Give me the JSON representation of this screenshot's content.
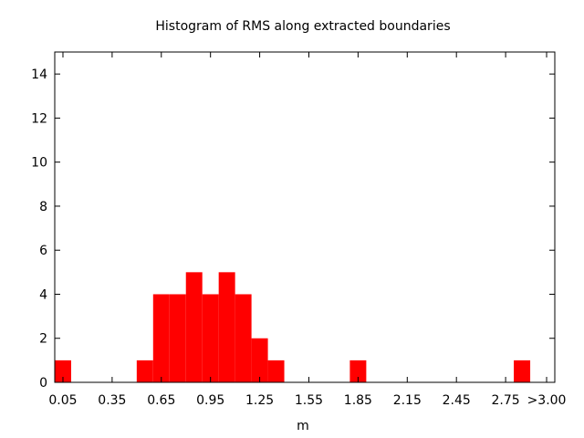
{
  "chart_data": {
    "type": "bar",
    "title": "Histogram of RMS along extracted boundaries",
    "xlabel": "m",
    "ylabel": "",
    "ylim": [
      0,
      15
    ],
    "xlim": [
      0.0,
      3.05
    ],
    "bin_width": 0.1,
    "bar_color": "#ff0000",
    "bins": [
      {
        "x": 0.05,
        "value": 1
      },
      {
        "x": 0.55,
        "value": 1
      },
      {
        "x": 0.65,
        "value": 4
      },
      {
        "x": 0.75,
        "value": 4
      },
      {
        "x": 0.85,
        "value": 5
      },
      {
        "x": 0.95,
        "value": 4
      },
      {
        "x": 1.05,
        "value": 5
      },
      {
        "x": 1.15,
        "value": 4
      },
      {
        "x": 1.25,
        "value": 2
      },
      {
        "x": 1.35,
        "value": 1
      },
      {
        "x": 1.85,
        "value": 1
      },
      {
        "x": 2.85,
        "value": 1
      }
    ],
    "x_ticks": [
      {
        "value": 0.05,
        "label": "0.05"
      },
      {
        "value": 0.35,
        "label": "0.35"
      },
      {
        "value": 0.65,
        "label": "0.65"
      },
      {
        "value": 0.95,
        "label": "0.95"
      },
      {
        "value": 1.25,
        "label": "1.25"
      },
      {
        "value": 1.55,
        "label": "1.55"
      },
      {
        "value": 1.85,
        "label": "1.85"
      },
      {
        "value": 2.15,
        "label": "2.15"
      },
      {
        "value": 2.45,
        "label": "2.45"
      },
      {
        "value": 2.75,
        "label": "2.75"
      },
      {
        "value": 3.0,
        "label": ">3.00"
      }
    ],
    "y_ticks": [
      {
        "value": 0,
        "label": "0"
      },
      {
        "value": 2,
        "label": "2"
      },
      {
        "value": 4,
        "label": "4"
      },
      {
        "value": 6,
        "label": "6"
      },
      {
        "value": 8,
        "label": "8"
      },
      {
        "value": 10,
        "label": "10"
      },
      {
        "value": 12,
        "label": "12"
      },
      {
        "value": 14,
        "label": "14"
      }
    ],
    "grid": false
  }
}
